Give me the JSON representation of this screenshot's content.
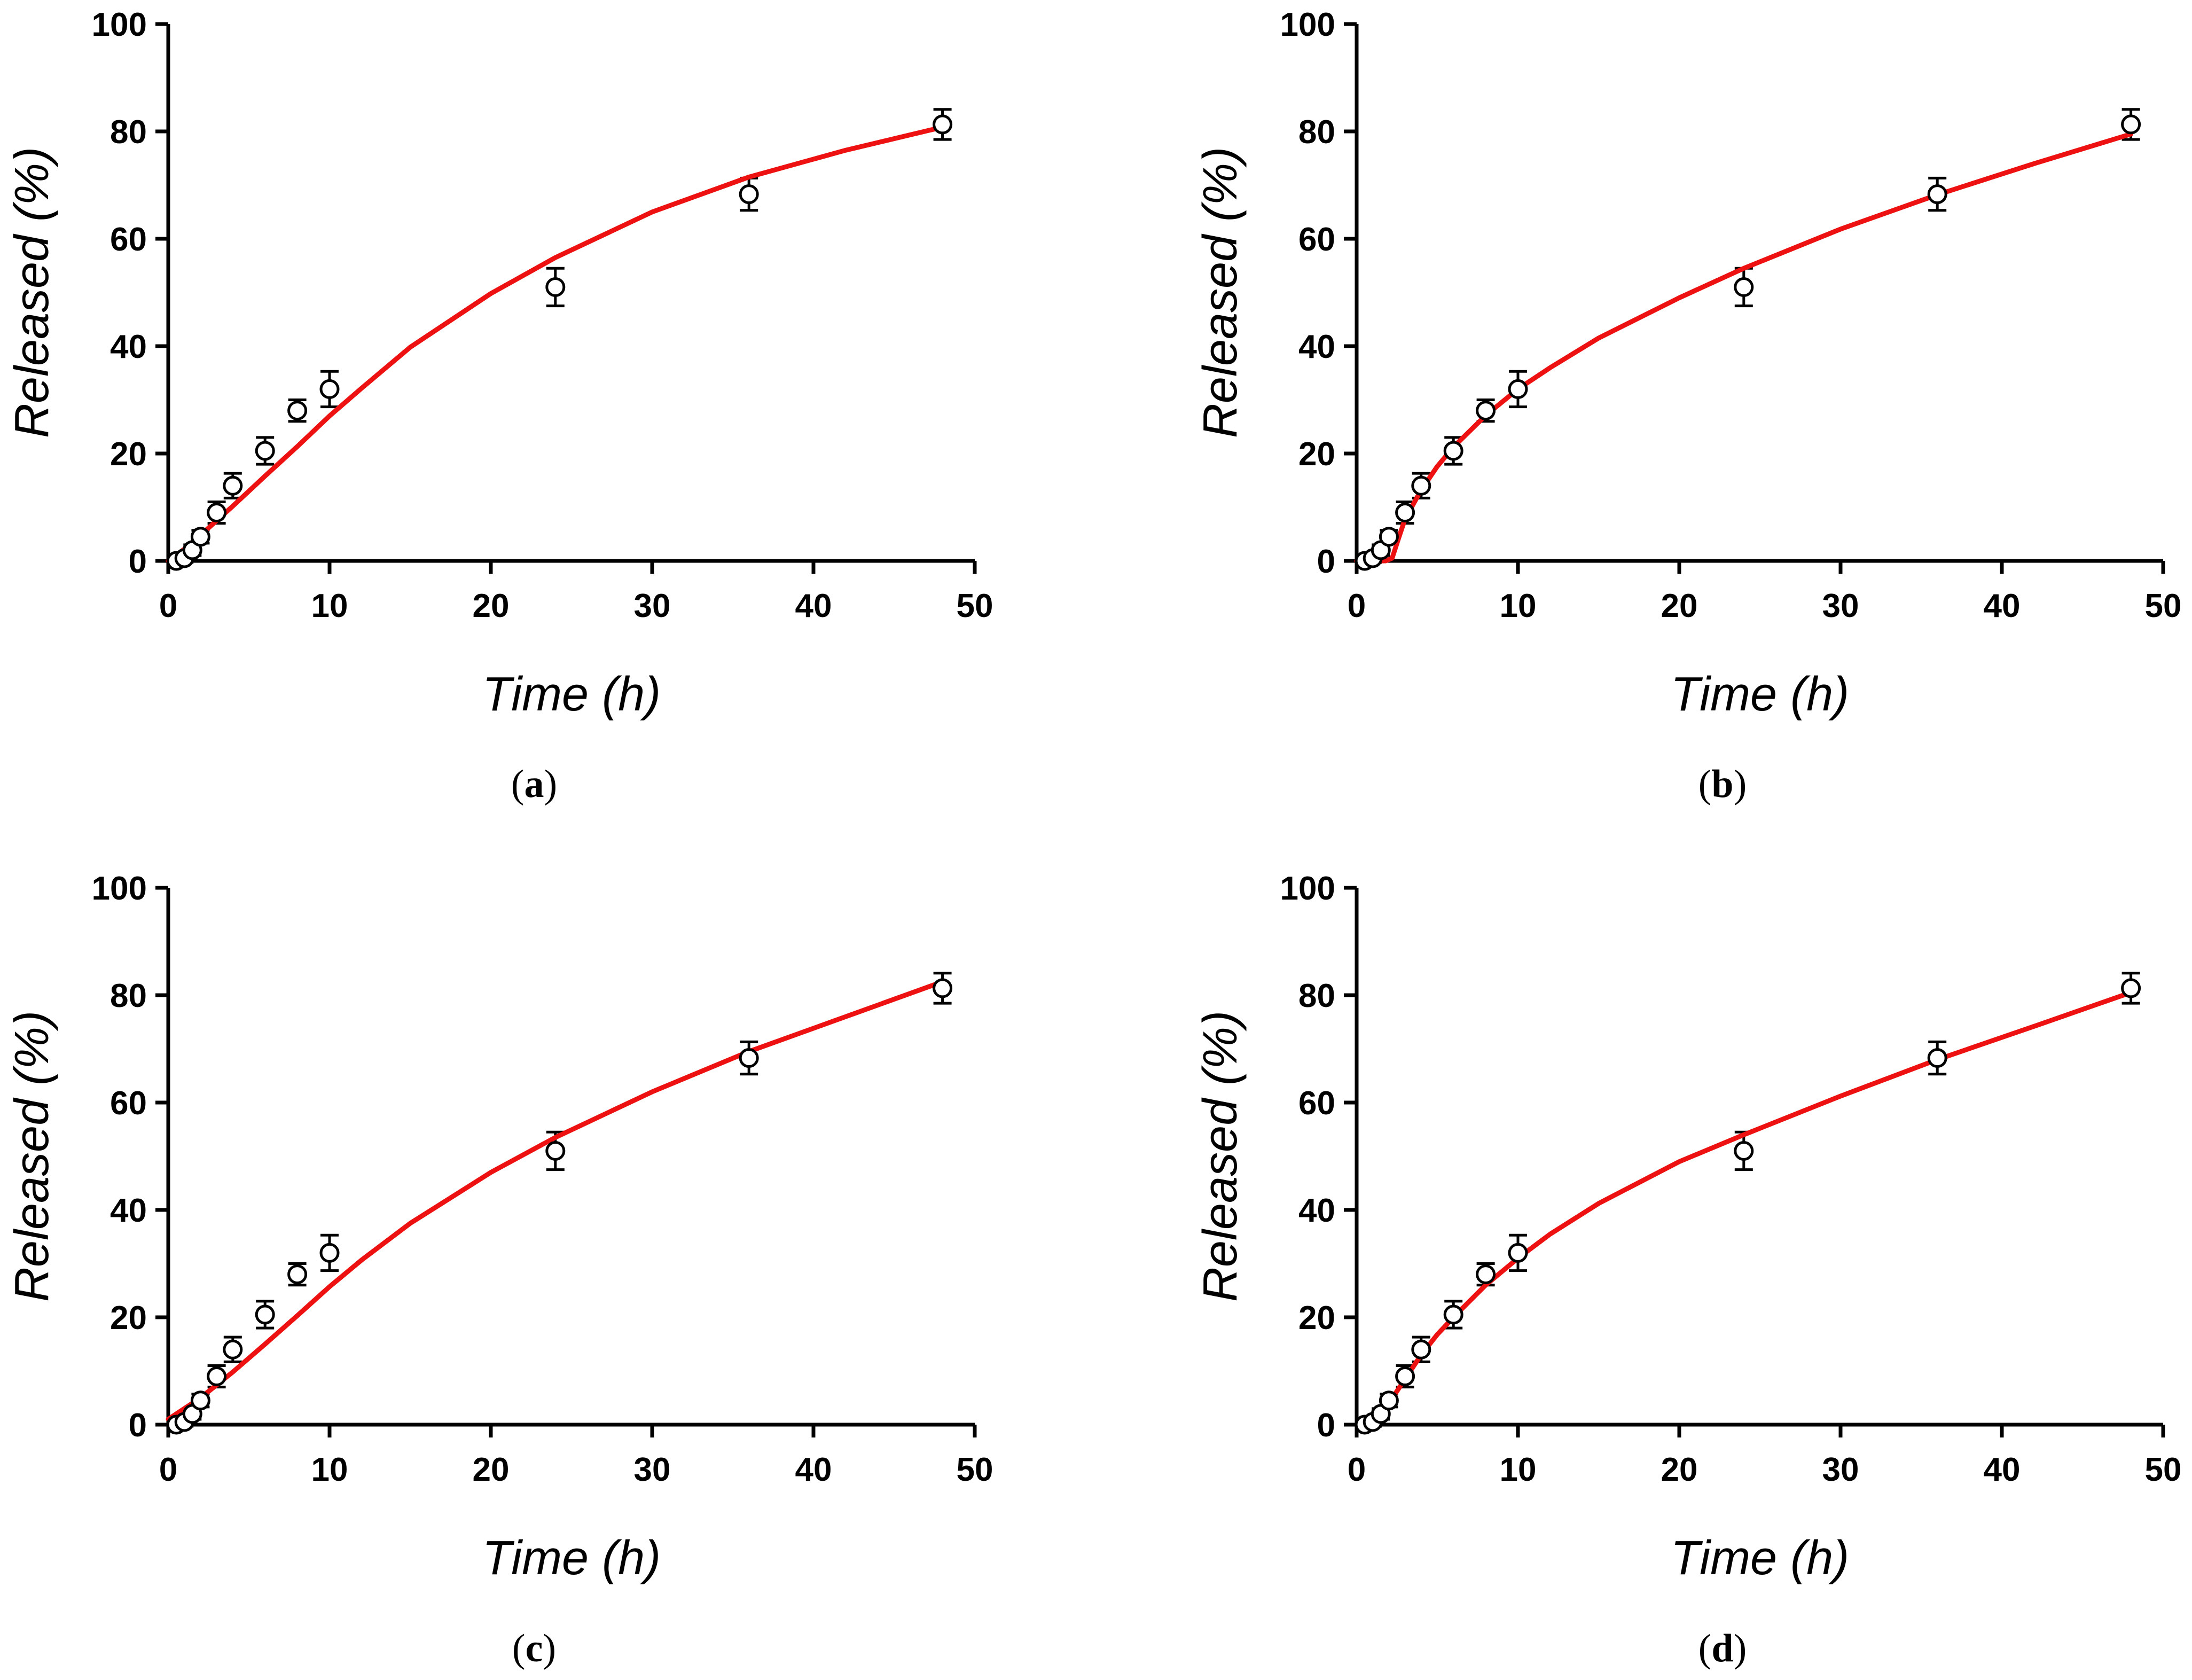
{
  "figure": {
    "shared_observed": {
      "name": "Released (%) observed",
      "x": [
        0.5,
        1,
        1.5,
        2,
        3,
        4,
        6,
        8,
        10,
        24,
        36,
        48
      ],
      "y": [
        0,
        0.5,
        2,
        4.5,
        9,
        14,
        20.5,
        28,
        32,
        51,
        68.3,
        81.3
      ],
      "err": [
        0.5,
        0.8,
        1.0,
        1.2,
        2.0,
        2.3,
        2.5,
        2.0,
        3.3,
        3.5,
        3.0,
        2.8
      ]
    }
  },
  "chart_data": [
    {
      "type": "scatter",
      "panel_label": "a",
      "panel_open": "(",
      "panel_close": ")",
      "xlabel": "Time (h)",
      "ylabel": "Released (%)",
      "xlim": [
        0,
        50
      ],
      "ylim": [
        0,
        100
      ],
      "xticks": [
        "0",
        "10",
        "20",
        "30",
        "40",
        "50"
      ],
      "yticks": [
        "0",
        "20",
        "40",
        "60",
        "80",
        "100"
      ],
      "colors": {
        "fit": "#ee1111",
        "points": "#000000"
      },
      "series": [
        {
          "name": "observed",
          "kind": "points_with_error",
          "x": [
            0.5,
            1,
            1.5,
            2,
            3,
            4,
            6,
            8,
            10,
            24,
            36,
            48
          ],
          "y": [
            0,
            0.5,
            2,
            4.5,
            9,
            14,
            20.5,
            28,
            32,
            51,
            68.3,
            81.3
          ],
          "err": [
            0.5,
            0.8,
            1.0,
            1.2,
            2.0,
            2.3,
            2.5,
            2.0,
            3.3,
            3.5,
            3.0,
            2.8
          ]
        },
        {
          "name": "fit",
          "kind": "line",
          "x": [
            0,
            1,
            2,
            3,
            4,
            6,
            8,
            10,
            12,
            15,
            20,
            24,
            30,
            36,
            42,
            48
          ],
          "y": [
            0,
            2.2,
            4.8,
            7.5,
            10.2,
            15.8,
            21.3,
            27.0,
            32.2,
            39.8,
            49.8,
            56.5,
            65.0,
            71.5,
            76.5,
            80.8
          ]
        }
      ]
    },
    {
      "type": "scatter",
      "panel_label": "b",
      "panel_open": "(",
      "panel_close": ")",
      "xlabel": "Time (h)",
      "ylabel": "Released (%)",
      "xlim": [
        0,
        50
      ],
      "ylim": [
        0,
        100
      ],
      "xticks": [
        "0",
        "10",
        "20",
        "30",
        "40",
        "50"
      ],
      "yticks": [
        "0",
        "20",
        "40",
        "60",
        "80",
        "100"
      ],
      "colors": {
        "fit": "#ee1111",
        "points": "#000000"
      },
      "series": [
        {
          "name": "observed",
          "kind": "points_with_error",
          "x": [
            0.5,
            1,
            1.5,
            2,
            3,
            4,
            6,
            8,
            10,
            24,
            36,
            48
          ],
          "y": [
            0,
            0.5,
            2,
            4.5,
            9,
            14,
            20.5,
            28,
            32,
            51,
            68.3,
            81.3
          ],
          "err": [
            0.5,
            0.8,
            1.0,
            1.2,
            2.0,
            2.3,
            2.5,
            2.0,
            3.3,
            3.5,
            3.0,
            2.8
          ]
        },
        {
          "name": "fit",
          "kind": "line",
          "x": [
            0,
            1,
            1.8,
            2.2,
            2.6,
            3,
            4,
            5,
            6,
            8,
            10,
            12,
            15,
            20,
            24,
            30,
            36,
            42,
            48
          ],
          "y": [
            0,
            0,
            0,
            0.5,
            4.2,
            7.8,
            13.2,
            17.6,
            21.2,
            27.1,
            32.0,
            36.0,
            41.5,
            49.0,
            54.5,
            61.8,
            68.2,
            74.0,
            79.5
          ]
        }
      ]
    },
    {
      "type": "scatter",
      "panel_label": "c",
      "panel_open": "(",
      "panel_close": ")",
      "xlabel": "Time (h)",
      "ylabel": "Released (%)",
      "xlim": [
        0,
        50
      ],
      "ylim": [
        0,
        100
      ],
      "xticks": [
        "0",
        "10",
        "20",
        "30",
        "40",
        "50"
      ],
      "yticks": [
        "0",
        "20",
        "40",
        "60",
        "80",
        "100"
      ],
      "colors": {
        "fit": "#ee1111",
        "points": "#000000"
      },
      "series": [
        {
          "name": "observed",
          "kind": "points_with_error",
          "x": [
            0.5,
            1,
            1.5,
            2,
            3,
            4,
            6,
            8,
            10,
            24,
            36,
            48
          ],
          "y": [
            0,
            0.5,
            2,
            4.5,
            9,
            14,
            20.5,
            28,
            32,
            51,
            68.3,
            81.3
          ],
          "err": [
            0.5,
            0.8,
            1.0,
            1.2,
            2.0,
            2.3,
            2.5,
            2.0,
            3.3,
            3.5,
            3.0,
            2.8
          ]
        },
        {
          "name": "fit",
          "kind": "line",
          "x": [
            0,
            2,
            4,
            6,
            8,
            10,
            12,
            15,
            20,
            24,
            30,
            36,
            42,
            48
          ],
          "y": [
            1.0,
            5.0,
            9.8,
            15.0,
            20.3,
            25.7,
            30.7,
            37.5,
            47.0,
            53.5,
            62.0,
            69.5,
            76.0,
            82.5
          ]
        }
      ]
    },
    {
      "type": "scatter",
      "panel_label": "d",
      "panel_open": "(",
      "panel_close": ")",
      "xlabel": "Time (h)",
      "ylabel": "Released (%)",
      "xlim": [
        0,
        50
      ],
      "ylim": [
        0,
        100
      ],
      "xticks": [
        "0",
        "10",
        "20",
        "30",
        "40",
        "50"
      ],
      "yticks": [
        "0",
        "20",
        "40",
        "60",
        "80",
        "100"
      ],
      "colors": {
        "fit": "#ee1111",
        "points": "#000000"
      },
      "series": [
        {
          "name": "observed",
          "kind": "points_with_error",
          "x": [
            0.5,
            1,
            1.5,
            2,
            3,
            4,
            6,
            8,
            10,
            24,
            36,
            48
          ],
          "y": [
            0,
            0.5,
            2,
            4.5,
            9,
            14,
            20.5,
            28,
            32,
            51,
            68.3,
            81.3
          ],
          "err": [
            0.5,
            0.8,
            1.0,
            1.2,
            2.0,
            2.3,
            2.5,
            2.0,
            3.3,
            3.5,
            3.0,
            2.8
          ]
        },
        {
          "name": "fit",
          "kind": "line",
          "x": [
            0.5,
            1,
            1.5,
            2,
            3,
            4,
            5,
            6,
            8,
            10,
            12,
            15,
            20,
            24,
            30,
            36,
            42,
            48
          ],
          "y": [
            0,
            0.8,
            2.0,
            4.0,
            8.5,
            13.0,
            16.8,
            20.0,
            26.0,
            31.0,
            35.5,
            41.2,
            49.0,
            54.0,
            61.2,
            68.0,
            74.2,
            80.5
          ]
        }
      ]
    }
  ]
}
